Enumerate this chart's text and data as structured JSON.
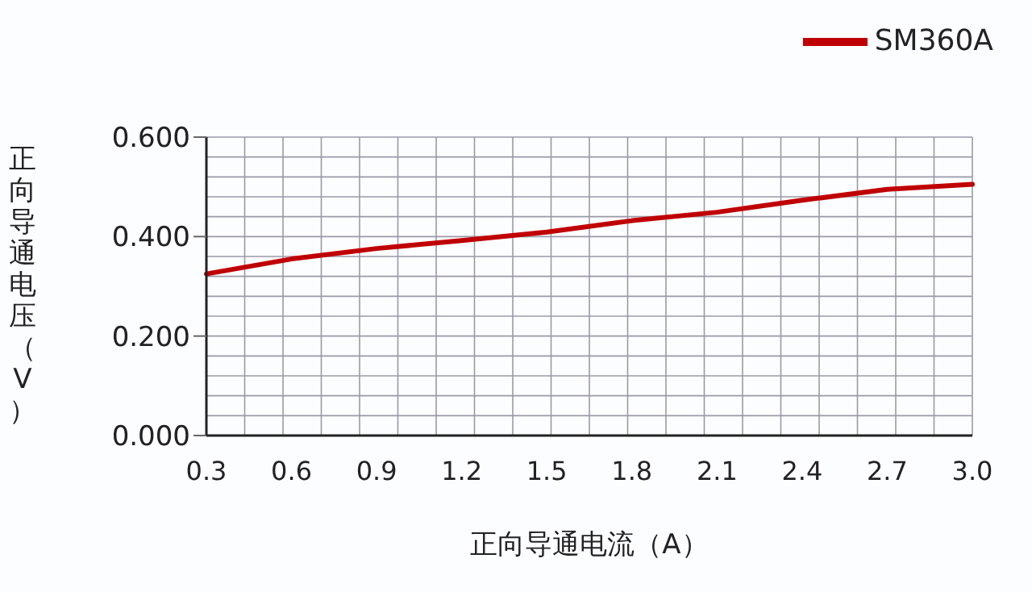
{
  "chart_data": {
    "type": "line",
    "xlabel": "正向导通电流（A）",
    "ylabel": "正向导通电压（V）",
    "categories": [
      "0.3",
      "0.6",
      "0.9",
      "1.2",
      "1.5",
      "1.8",
      "2.1",
      "2.4",
      "2.7",
      "3.0"
    ],
    "series": [
      {
        "name": "SM360A",
        "color": "#c00000",
        "values": [
          0.325,
          0.355,
          0.376,
          0.392,
          0.409,
          0.432,
          0.449,
          0.473,
          0.495,
          0.505
        ]
      }
    ],
    "ylim": [
      0,
      0.6
    ],
    "yticks": [
      {
        "value": 0,
        "label": "0.000"
      },
      {
        "value": 0.2,
        "label": "0.200"
      },
      {
        "value": 0.4,
        "label": "0.400"
      },
      {
        "value": 0.6,
        "label": "0.600"
      }
    ],
    "grid": true,
    "legend": "top right",
    "marker": "none",
    "line_style": "solid"
  }
}
